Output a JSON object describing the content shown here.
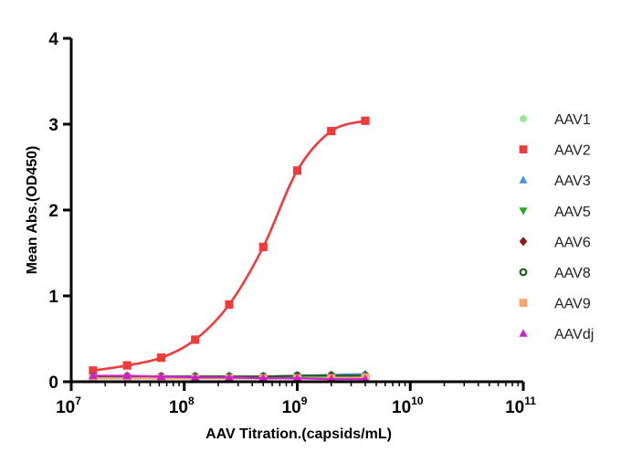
{
  "chart_data": {
    "type": "scatter",
    "xlabel": "AAV Titration.(capsids/mL)",
    "ylabel": "Mean Abs.(OD450)",
    "x_scale": "log",
    "xlim": [
      10000000,
      100000000000
    ],
    "ylim": [
      0,
      4
    ],
    "x_ticks": [
      {
        "base": "10",
        "exp": "7",
        "value": 10000000
      },
      {
        "base": "10",
        "exp": "8",
        "value": 100000000
      },
      {
        "base": "10",
        "exp": "9",
        "value": 1000000000
      },
      {
        "base": "10",
        "exp": "10",
        "value": 10000000000
      },
      {
        "base": "10",
        "exp": "11",
        "value": 100000000000
      }
    ],
    "y_ticks": [
      "0",
      "1",
      "2",
      "3",
      "4"
    ],
    "grid": false,
    "legend_position": "right",
    "x": [
      15600000,
      31250000,
      62500000,
      125000000,
      250000000,
      500000000,
      1000000000,
      2000000000,
      4000000000
    ],
    "series": [
      {
        "name": "AAV1",
        "color": "#90EE90",
        "marker": "circle",
        "fit": false,
        "values": [
          0.05,
          0.05,
          0.05,
          0.05,
          0.05,
          0.05,
          0.05,
          0.06,
          0.06
        ]
      },
      {
        "name": "AAV2",
        "color": "#EE3B3B",
        "marker": "square",
        "fit": true,
        "values": [
          0.13,
          0.19,
          0.28,
          0.49,
          0.9,
          1.57,
          2.46,
          2.92,
          3.04
        ]
      },
      {
        "name": "AAV3",
        "color": "#4A90E2",
        "marker": "triangle-up",
        "fit": false,
        "values": [
          0.05,
          0.05,
          0.05,
          0.05,
          0.05,
          0.06,
          0.07,
          0.08,
          0.09
        ]
      },
      {
        "name": "AAV5",
        "color": "#22B022",
        "marker": "triangle-down",
        "fit": false,
        "values": [
          0.04,
          0.04,
          0.04,
          0.04,
          0.04,
          0.04,
          0.04,
          0.04,
          0.04
        ]
      },
      {
        "name": "AAV6",
        "color": "#8B1A1A",
        "marker": "diamond",
        "fit": false,
        "values": [
          0.06,
          0.06,
          0.06,
          0.06,
          0.06,
          0.06,
          0.07,
          0.07,
          0.07
        ]
      },
      {
        "name": "AAV8",
        "color": "#1E5E1E",
        "marker": "circle-open",
        "fit": false,
        "values": [
          0.06,
          0.06,
          0.06,
          0.06,
          0.06,
          0.06,
          0.07,
          0.07,
          0.07
        ]
      },
      {
        "name": "AAV9",
        "color": "#F4A870",
        "marker": "square",
        "fit": false,
        "values": [
          0.04,
          0.04,
          0.04,
          0.04,
          0.04,
          0.04,
          0.04,
          0.04,
          0.05
        ]
      },
      {
        "name": "AAVdj",
        "color": "#CC22CC",
        "marker": "triangle-up",
        "fit": false,
        "values": [
          0.07,
          0.07,
          0.06,
          0.05,
          0.05,
          0.04,
          0.04,
          0.03,
          0.03
        ]
      }
    ]
  }
}
